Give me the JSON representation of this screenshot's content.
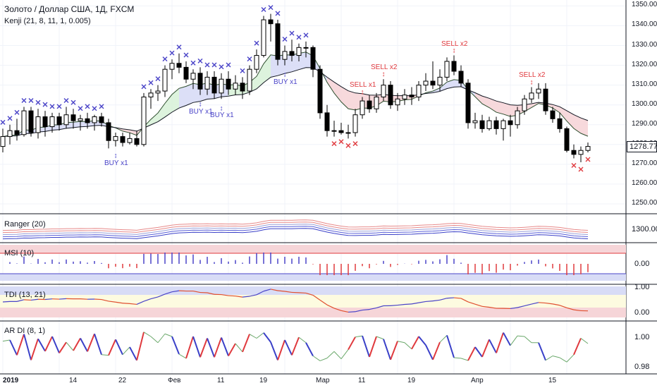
{
  "header": {
    "title": "Золото / Доллар США, 1Д, FXCM",
    "indicator": "Kenji (21, 8, 11, 1, 0.005)"
  },
  "panes": {
    "ranger": {
      "label": "Ranger (20)",
      "price_tick": "1300.00"
    },
    "msi": {
      "label": "MSI (10)",
      "price_tick": "0.00"
    },
    "tdi": {
      "label": "TDI (13, 21)",
      "price_ticks": [
        "1.00",
        "0.00"
      ]
    },
    "ardi": {
      "label": "AR DI (8, 1)",
      "price_ticks": [
        "1.00",
        "0.98"
      ]
    }
  },
  "price_axis": {
    "ticks": [
      "1350.00",
      "1340.00",
      "1330.00",
      "1320.00",
      "1310.00",
      "1300.00",
      "1290.00",
      "1280.00",
      "1270.00",
      "1260.00",
      "1250.00"
    ],
    "current_price": "1278.77",
    "current_color": "#131722"
  },
  "time_axis": {
    "labels": [
      "2019",
      "14",
      "22",
      "Фев",
      "11",
      "19",
      "Мар",
      "11",
      "19",
      "Апр",
      "15"
    ]
  },
  "signals": {
    "buy": [
      "BUY x1",
      "BUY x1",
      "BUY x1",
      "BUY x1"
    ],
    "sell": [
      "SELL x1",
      "SELL x2",
      "SELL x2",
      "SELL x2"
    ]
  },
  "colors": {
    "buy_signal": "#4a44c8",
    "sell_signal": "#e03a3e",
    "cloud_bull": "#d8dcf6",
    "cloud_green": "#d9f2d9",
    "cloud_bear": "#f6d5d8",
    "candle_up": "#ffffff",
    "candle_down": "#000000"
  },
  "chart_data": {
    "type": "candlestick",
    "title": "Золото / Доллар США, 1Д, FXCM",
    "ylim": [
      1245,
      1353
    ],
    "candles": [
      {
        "o": 1279,
        "h": 1288,
        "l": 1276,
        "c": 1284
      },
      {
        "o": 1284,
        "h": 1290,
        "l": 1280,
        "c": 1287
      },
      {
        "o": 1287,
        "h": 1293,
        "l": 1282,
        "c": 1285
      },
      {
        "o": 1285,
        "h": 1299,
        "l": 1284,
        "c": 1297
      },
      {
        "o": 1297,
        "h": 1299,
        "l": 1284,
        "c": 1286
      },
      {
        "o": 1286,
        "h": 1298,
        "l": 1283,
        "c": 1294
      },
      {
        "o": 1294,
        "h": 1297,
        "l": 1284,
        "c": 1289
      },
      {
        "o": 1289,
        "h": 1296,
        "l": 1286,
        "c": 1294
      },
      {
        "o": 1294,
        "h": 1296,
        "l": 1287,
        "c": 1290
      },
      {
        "o": 1290,
        "h": 1299,
        "l": 1288,
        "c": 1295
      },
      {
        "o": 1295,
        "h": 1298,
        "l": 1288,
        "c": 1292
      },
      {
        "o": 1292,
        "h": 1295,
        "l": 1287,
        "c": 1293
      },
      {
        "o": 1293,
        "h": 1296,
        "l": 1288,
        "c": 1291
      },
      {
        "o": 1291,
        "h": 1295,
        "l": 1287,
        "c": 1294
      },
      {
        "o": 1294,
        "h": 1296,
        "l": 1289,
        "c": 1291
      },
      {
        "o": 1291,
        "h": 1293,
        "l": 1278,
        "c": 1282
      },
      {
        "o": 1282,
        "h": 1286,
        "l": 1279,
        "c": 1284
      },
      {
        "o": 1284,
        "h": 1286,
        "l": 1279,
        "c": 1281
      },
      {
        "o": 1281,
        "h": 1286,
        "l": 1280,
        "c": 1283
      },
      {
        "o": 1283,
        "h": 1287,
        "l": 1279,
        "c": 1280
      },
      {
        "o": 1280,
        "h": 1306,
        "l": 1279,
        "c": 1304
      },
      {
        "o": 1304,
        "h": 1308,
        "l": 1298,
        "c": 1306
      },
      {
        "o": 1306,
        "h": 1310,
        "l": 1302,
        "c": 1307
      },
      {
        "o": 1307,
        "h": 1320,
        "l": 1304,
        "c": 1318
      },
      {
        "o": 1318,
        "h": 1323,
        "l": 1313,
        "c": 1321
      },
      {
        "o": 1321,
        "h": 1326,
        "l": 1316,
        "c": 1319
      },
      {
        "o": 1319,
        "h": 1322,
        "l": 1311,
        "c": 1313
      },
      {
        "o": 1313,
        "h": 1318,
        "l": 1308,
        "c": 1316
      },
      {
        "o": 1316,
        "h": 1319,
        "l": 1305,
        "c": 1308
      },
      {
        "o": 1308,
        "h": 1317,
        "l": 1305,
        "c": 1314
      },
      {
        "o": 1314,
        "h": 1317,
        "l": 1303,
        "c": 1306
      },
      {
        "o": 1306,
        "h": 1316,
        "l": 1303,
        "c": 1313
      },
      {
        "o": 1313,
        "h": 1317,
        "l": 1305,
        "c": 1308
      },
      {
        "o": 1308,
        "h": 1315,
        "l": 1305,
        "c": 1311
      },
      {
        "o": 1311,
        "h": 1314,
        "l": 1303,
        "c": 1307
      },
      {
        "o": 1307,
        "h": 1320,
        "l": 1305,
        "c": 1318
      },
      {
        "o": 1318,
        "h": 1328,
        "l": 1316,
        "c": 1325
      },
      {
        "o": 1325,
        "h": 1345,
        "l": 1324,
        "c": 1343
      },
      {
        "o": 1343,
        "h": 1346,
        "l": 1332,
        "c": 1341
      },
      {
        "o": 1341,
        "h": 1343,
        "l": 1320,
        "c": 1323
      },
      {
        "o": 1323,
        "h": 1330,
        "l": 1320,
        "c": 1327
      },
      {
        "o": 1327,
        "h": 1333,
        "l": 1322,
        "c": 1325
      },
      {
        "o": 1325,
        "h": 1331,
        "l": 1322,
        "c": 1329
      },
      {
        "o": 1329,
        "h": 1332,
        "l": 1324,
        "c": 1329
      },
      {
        "o": 1329,
        "h": 1330,
        "l": 1314,
        "c": 1318
      },
      {
        "o": 1318,
        "h": 1320,
        "l": 1293,
        "c": 1296
      },
      {
        "o": 1296,
        "h": 1300,
        "l": 1284,
        "c": 1287
      },
      {
        "o": 1287,
        "h": 1292,
        "l": 1284,
        "c": 1287
      },
      {
        "o": 1287,
        "h": 1291,
        "l": 1285,
        "c": 1286
      },
      {
        "o": 1286,
        "h": 1290,
        "l": 1283,
        "c": 1286
      },
      {
        "o": 1286,
        "h": 1298,
        "l": 1284,
        "c": 1295
      },
      {
        "o": 1295,
        "h": 1304,
        "l": 1293,
        "c": 1302
      },
      {
        "o": 1302,
        "h": 1305,
        "l": 1296,
        "c": 1298
      },
      {
        "o": 1298,
        "h": 1306,
        "l": 1296,
        "c": 1304
      },
      {
        "o": 1304,
        "h": 1313,
        "l": 1302,
        "c": 1310
      },
      {
        "o": 1310,
        "h": 1312,
        "l": 1298,
        "c": 1300
      },
      {
        "o": 1300,
        "h": 1306,
        "l": 1297,
        "c": 1303
      },
      {
        "o": 1303,
        "h": 1308,
        "l": 1300,
        "c": 1305
      },
      {
        "o": 1305,
        "h": 1309,
        "l": 1300,
        "c": 1304
      },
      {
        "o": 1304,
        "h": 1312,
        "l": 1302,
        "c": 1310
      },
      {
        "o": 1310,
        "h": 1316,
        "l": 1307,
        "c": 1312
      },
      {
        "o": 1312,
        "h": 1322,
        "l": 1308,
        "c": 1310
      },
      {
        "o": 1310,
        "h": 1318,
        "l": 1307,
        "c": 1314
      },
      {
        "o": 1314,
        "h": 1324,
        "l": 1312,
        "c": 1322
      },
      {
        "o": 1322,
        "h": 1325,
        "l": 1315,
        "c": 1317
      },
      {
        "o": 1317,
        "h": 1320,
        "l": 1309,
        "c": 1311
      },
      {
        "o": 1311,
        "h": 1313,
        "l": 1288,
        "c": 1291
      },
      {
        "o": 1291,
        "h": 1296,
        "l": 1288,
        "c": 1292
      },
      {
        "o": 1292,
        "h": 1295,
        "l": 1286,
        "c": 1288
      },
      {
        "o": 1288,
        "h": 1294,
        "l": 1287,
        "c": 1292
      },
      {
        "o": 1292,
        "h": 1294,
        "l": 1285,
        "c": 1288
      },
      {
        "o": 1288,
        "h": 1293,
        "l": 1282,
        "c": 1292
      },
      {
        "o": 1292,
        "h": 1295,
        "l": 1284,
        "c": 1290
      },
      {
        "o": 1290,
        "h": 1299,
        "l": 1288,
        "c": 1297
      },
      {
        "o": 1297,
        "h": 1305,
        "l": 1295,
        "c": 1303
      },
      {
        "o": 1303,
        "h": 1309,
        "l": 1301,
        "c": 1306
      },
      {
        "o": 1306,
        "h": 1311,
        "l": 1303,
        "c": 1308
      },
      {
        "o": 1308,
        "h": 1311,
        "l": 1295,
        "c": 1297
      },
      {
        "o": 1297,
        "h": 1299,
        "l": 1291,
        "c": 1293
      },
      {
        "o": 1293,
        "h": 1296,
        "l": 1286,
        "c": 1288
      },
      {
        "o": 1288,
        "h": 1289,
        "l": 1276,
        "c": 1277
      },
      {
        "o": 1277,
        "h": 1280,
        "l": 1273,
        "c": 1275
      },
      {
        "o": 1275,
        "h": 1279,
        "l": 1271,
        "c": 1277
      },
      {
        "o": 1277,
        "h": 1281,
        "l": 1276,
        "c": 1279
      }
    ]
  }
}
